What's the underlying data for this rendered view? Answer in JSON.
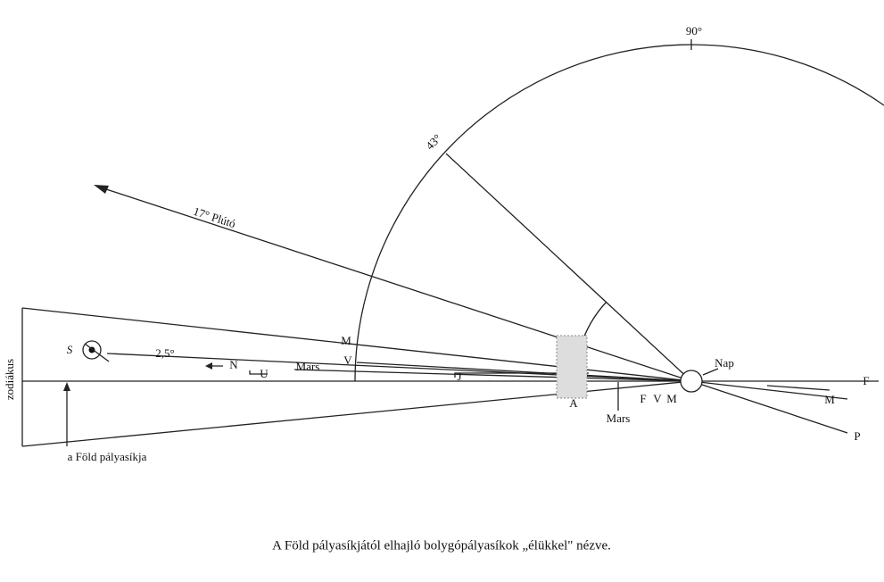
{
  "labels": [
    "90°",
    "43°",
    "17° Plútó",
    "S",
    "2,5°",
    "N",
    "U",
    "Mars",
    "M",
    "V",
    "J",
    "A",
    "Mars",
    "F",
    "V",
    "M",
    "Nap",
    "F",
    "M",
    "P",
    "zodiákus",
    "a Föld pályasíkja"
  ],
  "caption": "A Föld pályasíkjától elhajló bolygópályasíkok „élükkel\" nézve."
}
